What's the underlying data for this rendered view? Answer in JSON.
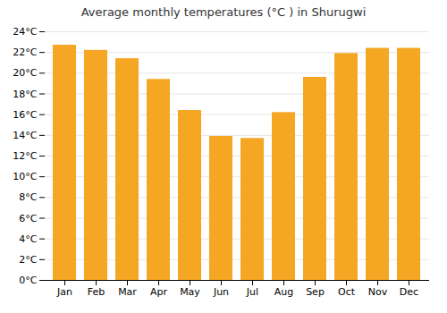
{
  "chart_data": {
    "type": "bar",
    "title": "Average monthly temperatures (°C ) in Shurugwi",
    "categories": [
      "Jan",
      "Feb",
      "Mar",
      "Apr",
      "May",
      "Jun",
      "Jul",
      "Aug",
      "Sep",
      "Oct",
      "Nov",
      "Dec"
    ],
    "values": [
      22.7,
      22.2,
      21.4,
      19.4,
      16.4,
      13.9,
      13.7,
      16.2,
      19.6,
      21.9,
      22.4,
      22.4
    ],
    "color": "#F5A623",
    "ylim": [
      0,
      24
    ],
    "yticks": [
      {
        "value": 0,
        "label": "0°C"
      },
      {
        "value": 2,
        "label": "2°C"
      },
      {
        "value": 4,
        "label": "4°C"
      },
      {
        "value": 6,
        "label": "6°C"
      },
      {
        "value": 8,
        "label": "8°C"
      },
      {
        "value": 10,
        "label": "10°C"
      },
      {
        "value": 12,
        "label": "12°C"
      },
      {
        "value": 14,
        "label": "14°C"
      },
      {
        "value": 16,
        "label": "16°C"
      },
      {
        "value": 18,
        "label": "18°C"
      },
      {
        "value": 20,
        "label": "20°C"
      },
      {
        "value": 22,
        "label": "22°C"
      },
      {
        "value": 24,
        "label": "24°C"
      }
    ],
    "grid": true
  }
}
